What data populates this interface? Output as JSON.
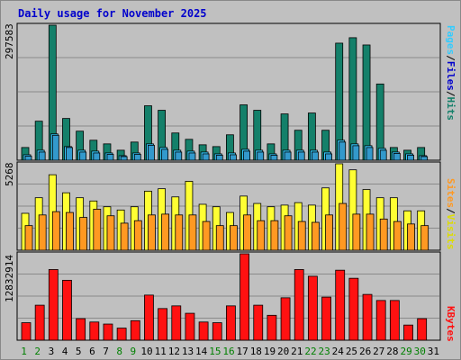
{
  "title": "Daily usage for November 2025",
  "colors": {
    "hits": "#14806a",
    "files": "#33ccff",
    "pages": "#3399cc",
    "visits": "#ffff33",
    "sites": "#ff9922",
    "kbytes": "#ff1111",
    "weekend_label": "#008000",
    "weekday_label": "#000000",
    "panel_bg": "#c0c0c0"
  },
  "chart_data": [
    {
      "type": "bar",
      "panel": "hits-files-pages",
      "ymax_label": "297583",
      "ylim": [
        0,
        297583
      ],
      "legend": [
        "Pages",
        "Files",
        "Hits"
      ],
      "categories": [
        "1",
        "2",
        "3",
        "4",
        "5",
        "6",
        "7",
        "8",
        "9",
        "10",
        "11",
        "12",
        "13",
        "14",
        "15",
        "16",
        "17",
        "18",
        "19",
        "20",
        "21",
        "22",
        "23",
        "24",
        "25",
        "26",
        "27",
        "28",
        "29",
        "30",
        "31"
      ],
      "weekend_days": [
        "1",
        "2",
        "8",
        "9",
        "15",
        "16",
        "22",
        "23",
        "29",
        "30"
      ],
      "series": [
        {
          "name": "Hits",
          "values": [
            28000,
            86000,
            297583,
            92000,
            64000,
            44000,
            36000,
            22000,
            40000,
            120000,
            110000,
            60000,
            46000,
            34000,
            30000,
            56000,
            122000,
            110000,
            36000,
            102000,
            66000,
            104000,
            66000,
            258000,
            270000,
            254000,
            168000,
            28000,
            22000,
            28000,
            0
          ]
        },
        {
          "name": "Files",
          "values": [
            12000,
            22000,
            58000,
            30000,
            22000,
            20000,
            16000,
            10000,
            16000,
            36000,
            28000,
            22000,
            20000,
            18000,
            14000,
            16000,
            24000,
            22000,
            14000,
            22000,
            22000,
            22000,
            18000,
            44000,
            36000,
            32000,
            26000,
            18000,
            14000,
            10000,
            0
          ]
        },
        {
          "name": "Pages",
          "values": [
            9000,
            18000,
            55000,
            28000,
            18000,
            16000,
            13000,
            8000,
            13000,
            33000,
            24000,
            18000,
            16000,
            14000,
            11000,
            12000,
            20000,
            18000,
            11000,
            18000,
            18000,
            18000,
            14000,
            40000,
            32000,
            28000,
            22000,
            15000,
            11000,
            8000,
            0
          ]
        }
      ]
    },
    {
      "type": "bar",
      "panel": "visits-sites",
      "ymax_label": "5268",
      "ylim": [
        0,
        5268
      ],
      "legend": [
        "Sites",
        "Visits"
      ],
      "categories": [
        "1",
        "2",
        "3",
        "4",
        "5",
        "6",
        "7",
        "8",
        "9",
        "10",
        "11",
        "12",
        "13",
        "14",
        "15",
        "16",
        "17",
        "18",
        "19",
        "20",
        "21",
        "22",
        "23",
        "24",
        "25",
        "26",
        "27",
        "28",
        "29",
        "30",
        "31"
      ],
      "series": [
        {
          "name": "Visits",
          "values": [
            2250,
            3200,
            4600,
            3500,
            3200,
            3000,
            2650,
            2450,
            2650,
            3600,
            3750,
            3250,
            4200,
            2800,
            2650,
            2300,
            3300,
            2850,
            2650,
            2750,
            2900,
            2750,
            3800,
            5268,
            4900,
            3700,
            3200,
            3200,
            2400,
            2400,
            0
          ]
        },
        {
          "name": "Sites",
          "values": [
            1500,
            2150,
            2350,
            2300,
            2000,
            2500,
            2100,
            1650,
            1800,
            2150,
            2200,
            2150,
            2150,
            1750,
            1500,
            1500,
            2150,
            1800,
            1800,
            2100,
            1750,
            1700,
            2150,
            2850,
            2200,
            2200,
            1900,
            1750,
            1600,
            1500,
            0
          ]
        }
      ]
    },
    {
      "type": "bar",
      "panel": "kbytes",
      "ymax_label": "12832914",
      "ylim": [
        0,
        12832914
      ],
      "legend": [
        "KBytes"
      ],
      "categories": [
        "1",
        "2",
        "3",
        "4",
        "5",
        "6",
        "7",
        "8",
        "9",
        "10",
        "11",
        "12",
        "13",
        "14",
        "15",
        "16",
        "17",
        "18",
        "19",
        "20",
        "21",
        "22",
        "23",
        "24",
        "25",
        "26",
        "27",
        "28",
        "29",
        "30",
        "31"
      ],
      "series": [
        {
          "name": "KBytes",
          "values": [
            2600000,
            5200000,
            10500000,
            8900000,
            3200000,
            2700000,
            2400000,
            1800000,
            2900000,
            6700000,
            4700000,
            5100000,
            4000000,
            2700000,
            2600000,
            5100000,
            12832914,
            5200000,
            3700000,
            6300000,
            10500000,
            9500000,
            6400000,
            10400000,
            9200000,
            6800000,
            5900000,
            5900000,
            2250000,
            3200000,
            0
          ]
        }
      ]
    }
  ]
}
